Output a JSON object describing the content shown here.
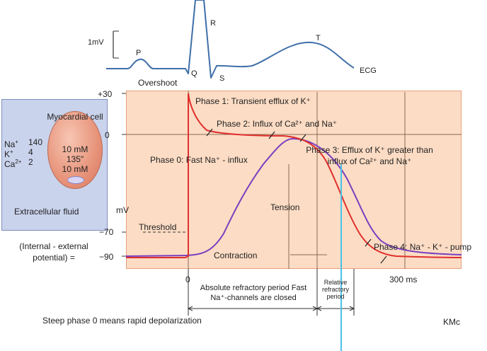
{
  "ecg": {
    "scale_label": "1mV",
    "waves": {
      "p": "P",
      "q": "Q",
      "r": "R",
      "s": "S",
      "t": "T"
    },
    "label": "ECG"
  },
  "cell": {
    "title": "Myocardial cell",
    "internal": [
      "10 mM",
      "135\"",
      "10 mM"
    ],
    "external_ions": [
      {
        "ion": "Na",
        "charge": "+",
        "value": "140"
      },
      {
        "ion": "K",
        "charge": "+",
        "value": "4"
      },
      {
        "ion": "Ca",
        "charge": "2+",
        "value": "2"
      }
    ],
    "fluid_label": "Extracellular fluid",
    "potential_label": "(Internal - external potential) ="
  },
  "axis": {
    "ylabel": "mV",
    "yticks": [
      "+30",
      "0",
      "−70",
      "−90"
    ],
    "xticks": [
      "0",
      "300 ms"
    ],
    "threshold": "Threshold"
  },
  "annotations": {
    "overshoot": "Overshoot",
    "phase1": "Phase 1: Transient efflux of K⁺",
    "phase2": "Phase 2: Influx of Ca²⁺ and Na⁺",
    "phase0": "Phase 0: Fast Na⁺ - influx",
    "phase3": "Phase 3: Efflux of K⁺ greater than influx of Ca²⁺ and Na⁺",
    "phase4": "Phase 4: Na⁺ - K⁺ - pump",
    "tension": "Tension",
    "contraction": "Contraction"
  },
  "periods": {
    "absolute": "Absolute refractory period Fast Na⁺-channels are closed",
    "relative": "Relative refractory period"
  },
  "footer": {
    "caption": "Steep phase 0 means rapid depolarization",
    "credit": "KMc"
  },
  "colors": {
    "action_potential": "#e0302e",
    "tension": "#7a3fc0",
    "background_plot": "#fcdcc4",
    "cell_box": "#c9d3ec",
    "marker": "#48c2e8"
  }
}
